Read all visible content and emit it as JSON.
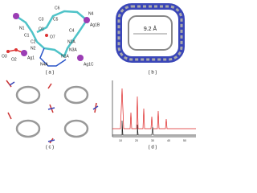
{
  "panels": [
    {
      "label": "( a )",
      "atoms": [
        "C6",
        "C5",
        "N4",
        "Ag1B",
        "N1",
        "C3",
        "C4",
        "O1",
        "C1",
        "C2",
        "O7",
        "N2A",
        "N3A",
        "N2",
        "N1A",
        "Ag1",
        "O3",
        "O2",
        "Ag1C",
        "N4A"
      ]
    },
    {
      "label": "( b )",
      "annotation": "9.2 Å"
    },
    {
      "label": "( c )"
    },
    {
      "label": "( d )",
      "xticks": [
        "10",
        "20",
        "30",
        "40",
        "50"
      ]
    }
  ]
}
